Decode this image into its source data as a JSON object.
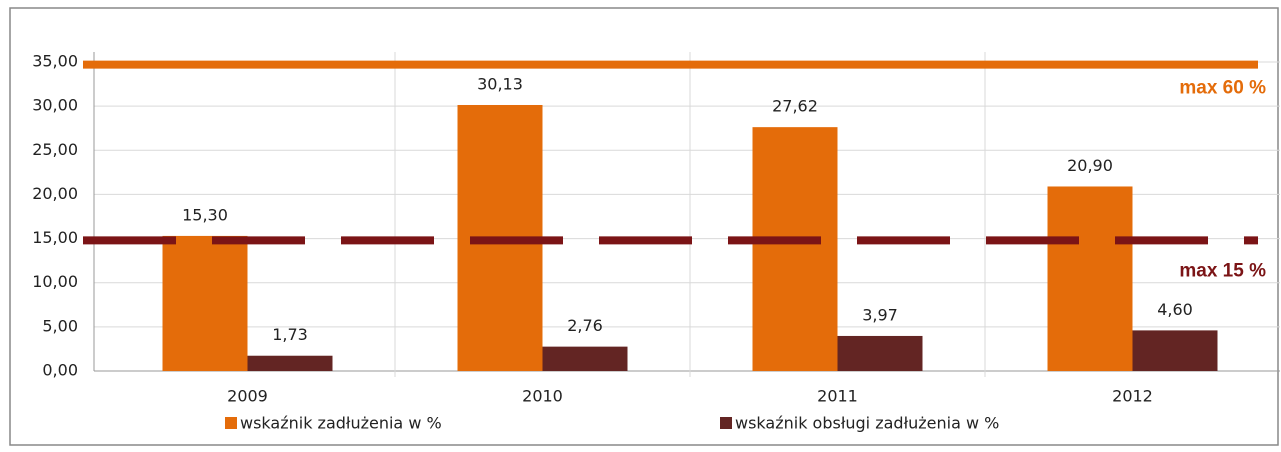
{
  "chart_data": {
    "type": "bar",
    "categories": [
      "2009",
      "2010",
      "2011",
      "2012"
    ],
    "series": [
      {
        "name": "wskaźnik zadłużenia w %",
        "color": "#e46c0a",
        "values": [
          15.3,
          30.13,
          27.62,
          20.9
        ],
        "value_labels": [
          "15,30",
          "30,13",
          "27,62",
          "20,90"
        ]
      },
      {
        "name": "wskaźnik obsługi zadłużenia w %",
        "color": "#632523",
        "values": [
          1.73,
          2.76,
          3.97,
          4.6
        ],
        "value_labels": [
          "1,73",
          "2,76",
          "3,97",
          "4,60"
        ]
      }
    ],
    "reference_lines": [
      {
        "value": 34.7,
        "label": "max 60 %",
        "color": "#e46c0a",
        "style": "solid"
      },
      {
        "value": 14.8,
        "label": "max 15 %",
        "color": "#7b1416",
        "style": "dashed"
      }
    ],
    "ylim": [
      0,
      35
    ],
    "yticks": [
      {
        "value": 0,
        "label": "0,00"
      },
      {
        "value": 5,
        "label": "5,00"
      },
      {
        "value": 10,
        "label": "10,00"
      },
      {
        "value": 15,
        "label": "15,00"
      },
      {
        "value": 20,
        "label": "20,00"
      },
      {
        "value": 25,
        "label": "25,00"
      },
      {
        "value": 30,
        "label": "30,00"
      },
      {
        "value": 35,
        "label": "35,00"
      }
    ],
    "grid": true,
    "legend": "bottom"
  }
}
